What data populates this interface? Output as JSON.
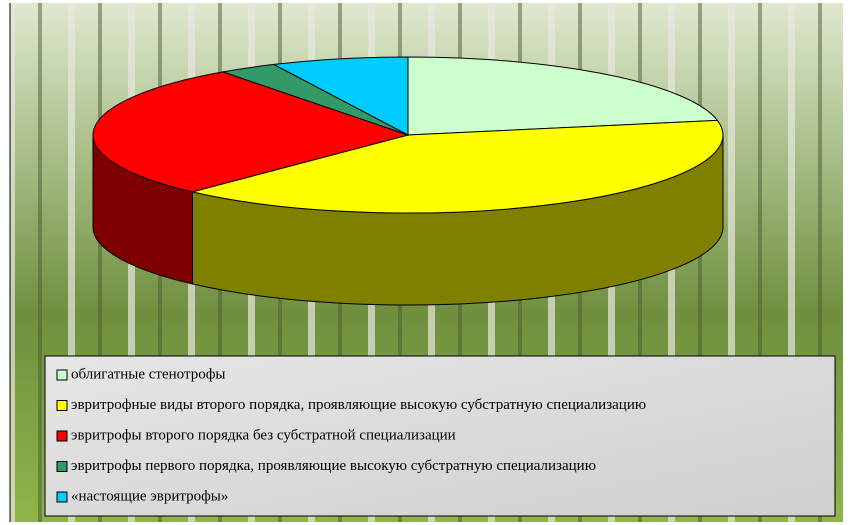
{
  "chart_data": {
    "type": "pie",
    "categories": [
      "облигатные стенотрофы",
      "эвритрофные виды второго порядка, проявляющие высокую субстратную специализацию",
      "эвритрофы второго порядка без субстратной специализации",
      "эвритрофы первого порядка, проявляющие высокую субстратную специализацию",
      "«настоящие эвритрофы»"
    ],
    "values": [
      22,
      40,
      28,
      3,
      7
    ],
    "colors": [
      "#ccffcc",
      "#ffff00",
      "#ff0000",
      "#339966",
      "#00ccff"
    ]
  }
}
